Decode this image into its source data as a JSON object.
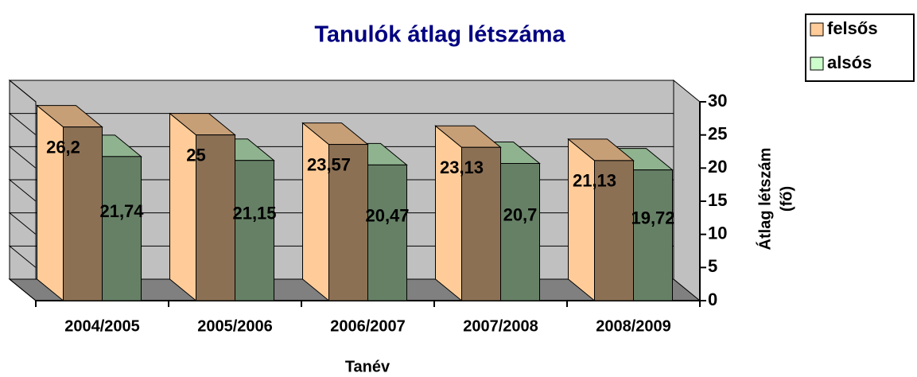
{
  "chart_data": {
    "type": "bar3d",
    "title": "Tanulók átlag létszáma",
    "categories": [
      "2004/2005",
      "2005/2006",
      "2006/2007",
      "2007/2008",
      "2008/2009"
    ],
    "series": [
      {
        "name": "felsős",
        "color": "#ffcc99",
        "values": [
          26.2,
          25,
          23.57,
          23.13,
          21.13
        ],
        "value_labels": [
          "26,2",
          "25",
          "23,57",
          "23,13",
          "21,13"
        ]
      },
      {
        "name": "alsós",
        "color": "#ccffcc",
        "values": [
          21.74,
          21.15,
          20.47,
          20.7,
          19.72
        ],
        "value_labels": [
          "21,74",
          "21,15",
          "20,47",
          "20,7",
          "19,72"
        ]
      }
    ],
    "x_label": "Tanév",
    "y_label": [
      "Átlag létszám",
      "(fő)"
    ],
    "ylim": [
      0,
      30
    ],
    "yticks": [
      0,
      5,
      10,
      15,
      20,
      25,
      30
    ],
    "grid": true,
    "legend": "upper right"
  }
}
